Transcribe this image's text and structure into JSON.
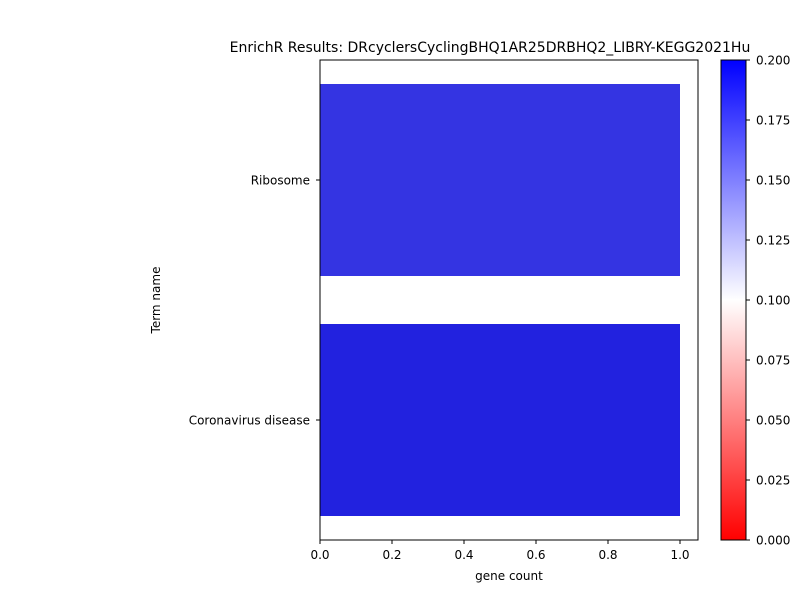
{
  "chart_data": {
    "type": "bar",
    "orientation": "horizontal",
    "title": "EnrichR Results: DRcyclersCyclingBHQ1AR25DRBHQ2_LIBRY-KEGG2021Hu",
    "xlabel": "gene count",
    "ylabel": "Term name",
    "categories": [
      "Ribosome",
      "Coronavirus disease"
    ],
    "values": [
      1.0,
      1.0
    ],
    "color_values": [
      0.18,
      0.19
    ],
    "xlim": [
      0.0,
      1.05
    ],
    "xticks": [
      "0.0",
      "0.2",
      "0.4",
      "0.6",
      "0.8",
      "1.0"
    ],
    "colorbar": {
      "range": [
        0.0,
        0.2
      ],
      "ticks": [
        "0.000",
        "0.025",
        "0.050",
        "0.075",
        "0.100",
        "0.125",
        "0.150",
        "0.175",
        "0.200"
      ],
      "colormap": [
        "#ff0000",
        "#ffffff",
        "#0000ff"
      ]
    },
    "bar_colors": [
      "#3434e2",
      "#2222df"
    ],
    "grid": false,
    "legend": "none"
  }
}
